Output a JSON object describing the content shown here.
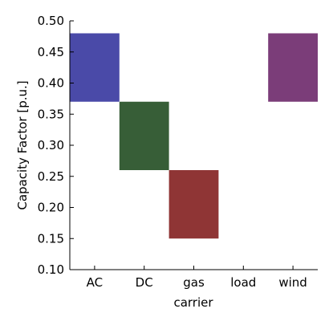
{
  "chart_data": {
    "type": "bar",
    "title": "",
    "xlabel": "carrier",
    "ylabel": "Capacity Factor [p.u.]",
    "ylim": [
      0.1,
      0.5
    ],
    "yticks": [
      "0.10",
      "0.15",
      "0.20",
      "0.25",
      "0.30",
      "0.35",
      "0.40",
      "0.45",
      "0.50"
    ],
    "categories": [
      "AC",
      "DC",
      "gas",
      "load",
      "wind"
    ],
    "bars": [
      {
        "category": "AC",
        "low": 0.37,
        "high": 0.48,
        "color": "#4a4aa8"
      },
      {
        "category": "DC",
        "low": 0.26,
        "high": 0.37,
        "color": "#375e37"
      },
      {
        "category": "gas",
        "low": 0.15,
        "high": 0.26,
        "color": "#8f3535"
      },
      {
        "category": "load",
        "low": null,
        "high": null,
        "color": ""
      },
      {
        "category": "wind",
        "low": 0.37,
        "high": 0.48,
        "color": "#7b3d79"
      }
    ],
    "grid": false,
    "legend": "none"
  }
}
